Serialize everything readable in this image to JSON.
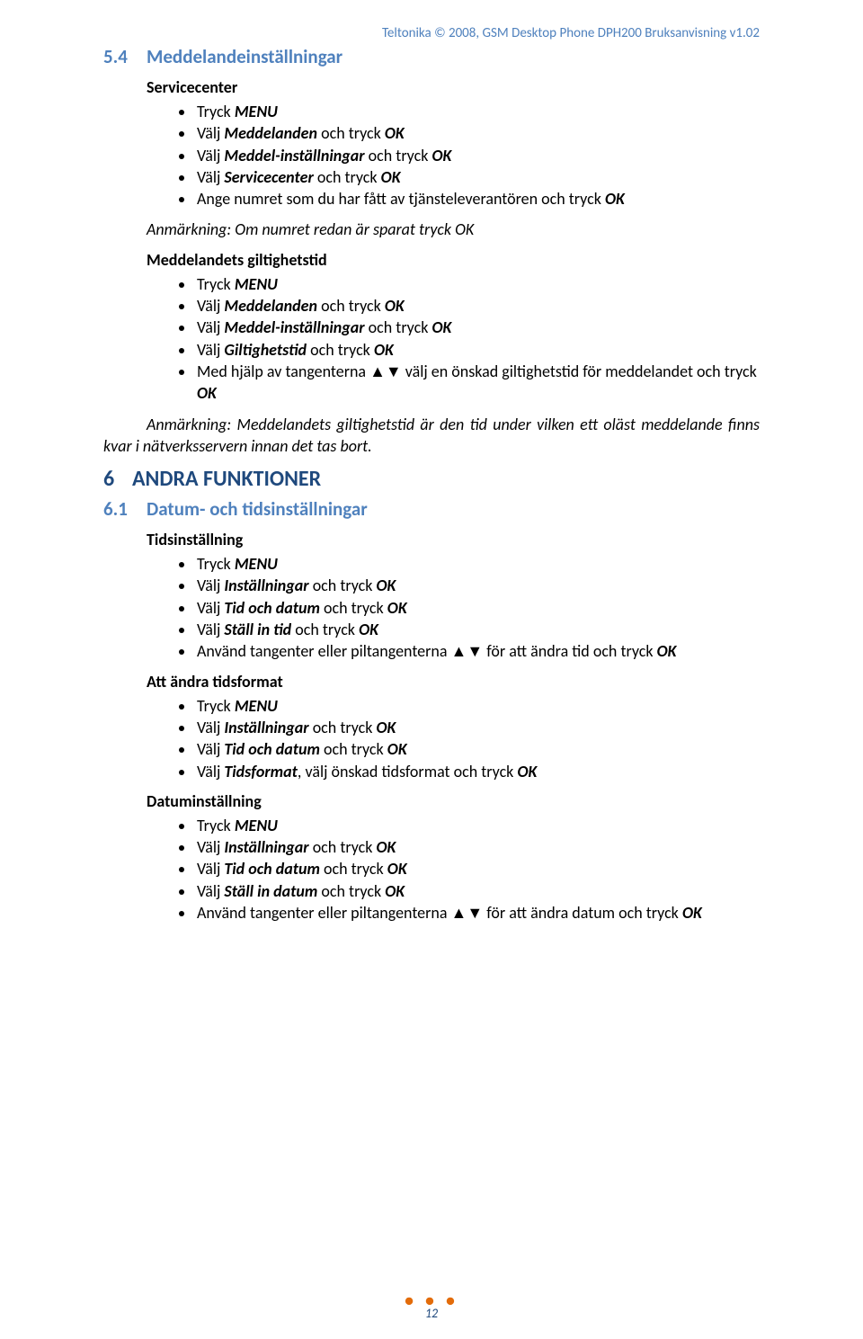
{
  "header": "Teltonika © 2008, GSM Desktop Phone DPH200 Bruksanvisning v1.02",
  "sec5_4": {
    "num": "5.4",
    "title": "Meddelandeinställningar",
    "block1_title": "Servicecenter",
    "b1_i1a": "Tryck ",
    "b1_i1b": "MENU",
    "b1_i2a": "Välj ",
    "b1_i2b": "Meddelanden",
    "b1_i2c": " och tryck ",
    "b1_i2d": "OK",
    "b1_i3a": "Välj ",
    "b1_i3b": "Meddel-inställningar",
    "b1_i3c": " och tryck ",
    "b1_i3d": "OK",
    "b1_i4a": "Välj ",
    "b1_i4b": "Servicecenter",
    "b1_i4c": " och tryck ",
    "b1_i4d": "OK",
    "b1_i5a": "Ange numret som du har fått av tjänsteleverantören och tryck ",
    "b1_i5b": "OK",
    "note1": "Anmärkning: Om numret redan är sparat tryck OK",
    "block2_title": "Meddelandets giltighetstid",
    "b2_i1a": "Tryck ",
    "b2_i1b": "MENU",
    "b2_i2a": "Välj ",
    "b2_i2b": "Meddelanden",
    "b2_i2c": " och tryck ",
    "b2_i2d": "OK",
    "b2_i3a": "Välj ",
    "b2_i3b": "Meddel-inställningar",
    "b2_i3c": " och tryck ",
    "b2_i3d": "OK",
    "b2_i4a": "Välj ",
    "b2_i4b": "Giltighetstid",
    "b2_i4c": " och tryck ",
    "b2_i4d": "OK",
    "b2_i5a": "Med hjälp av tangenterna ▲▼ välj en önskad giltighetstid för meddelandet och tryck ",
    "b2_i5b": "OK",
    "note2": "Anmärkning: Meddelandets giltighetstid är den tid under vilken ett oläst meddelande finns kvar i nätverksservern innan det tas bort."
  },
  "sec6": {
    "num": "6",
    "title": "ANDRA FUNKTIONER"
  },
  "sec6_1": {
    "num": "6.1",
    "title": "Datum- och tidsinställningar",
    "block1_title": "Tidsinställning",
    "c1_i1a": "Tryck ",
    "c1_i1b": "MENU",
    "c1_i2a": "Välj ",
    "c1_i2b": "Inställningar",
    "c1_i2c": " och tryck ",
    "c1_i2d": "OK",
    "c1_i3a": "Välj ",
    "c1_i3b": "Tid och datum",
    "c1_i3c": " och tryck ",
    "c1_i3d": "OK",
    "c1_i4a": "Välj ",
    "c1_i4b": "Ställ in tid",
    "c1_i4c": " och tryck ",
    "c1_i4d": "OK",
    "c1_i5a": "Använd tangenter eller piltangenterna ▲▼ för att ändra tid och tryck ",
    "c1_i5b": "OK",
    "block2_title": "Att ändra tidsformat",
    "c2_i1a": "Tryck ",
    "c2_i1b": "MENU",
    "c2_i2a": "Välj ",
    "c2_i2b": "Inställningar",
    "c2_i2c": " och tryck ",
    "c2_i2d": "OK",
    "c2_i3a": "Välj ",
    "c2_i3b": "Tid och datum",
    "c2_i3c": " och tryck ",
    "c2_i3d": "OK",
    "c2_i4a": "Välj ",
    "c2_i4b": "Tidsformat",
    "c2_i4c": ", välj önskad tidsformat och tryck ",
    "c2_i4d": "OK",
    "block3_title": "Datuminställning",
    "c3_i1a": "Tryck ",
    "c3_i1b": "MENU",
    "c3_i2a": "Välj ",
    "c3_i2b": "Inställningar",
    "c3_i2c": " och tryck ",
    "c3_i2d": "OK",
    "c3_i3a": "Välj ",
    "c3_i3b": "Tid och datum",
    "c3_i3c": " och tryck ",
    "c3_i3d": "OK",
    "c3_i4a": "Välj ",
    "c3_i4b": "Ställ in datum",
    "c3_i4c": " och tryck ",
    "c3_i4d": "OK",
    "c3_i5a": "Använd tangenter eller piltangenterna ▲▼ för att ändra datum och tryck ",
    "c3_i5b": "OK"
  },
  "footer": {
    "dots": "● ● ●",
    "page": "12"
  }
}
